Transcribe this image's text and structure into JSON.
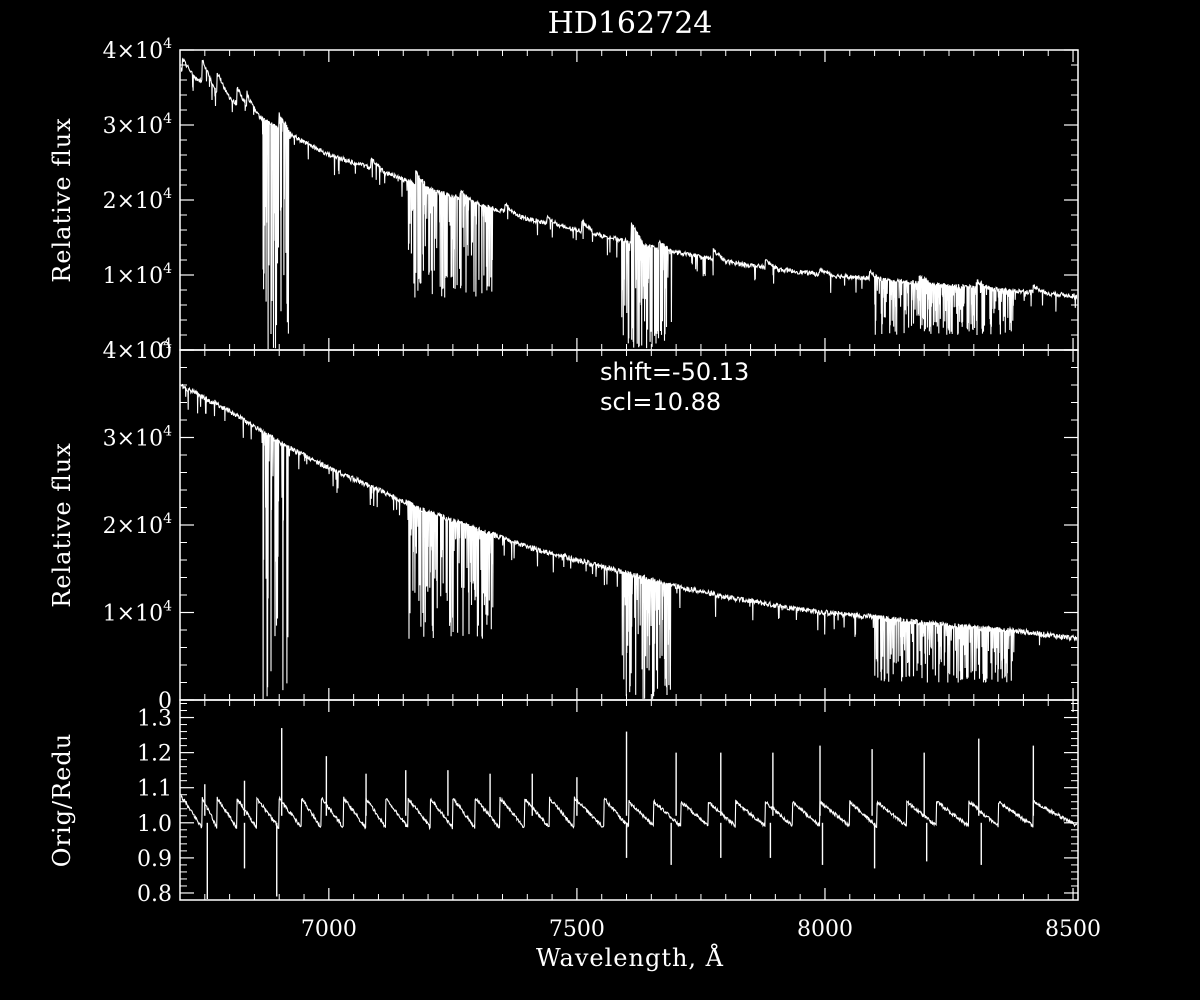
{
  "chart_data": {
    "type": "line",
    "title": "HD162724",
    "xlabel": "Wavelength, Å",
    "xlim": [
      6700,
      8510
    ],
    "x_ticks": [
      7000,
      7500,
      8000,
      8500
    ],
    "x_tick_labels": [
      "7000",
      "7500",
      "8000",
      "8500"
    ],
    "colors": {
      "background": "#000000",
      "foreground": "#ffffff"
    },
    "panels": [
      {
        "ylabel": "Relative flux",
        "ylim": [
          0,
          40000
        ],
        "y_ticks": [
          0,
          10000,
          20000,
          30000,
          40000
        ],
        "y_tick_labels": [
          {
            "base": "0",
            "exp": ""
          },
          {
            "base": "1×10",
            "exp": "4"
          },
          {
            "base": "2×10",
            "exp": "4"
          },
          {
            "base": "3×10",
            "exp": "4"
          },
          {
            "base": "4×10",
            "exp": "4"
          }
        ],
        "series": [
          {
            "continuum": [
              [
                6700,
                37500
              ],
              [
                6800,
                33500
              ],
              [
                6900,
                29500
              ],
              [
                7000,
                26000
              ],
              [
                7100,
                24000
              ],
              [
                7200,
                21500
              ],
              [
                7300,
                19500
              ],
              [
                7400,
                17500
              ],
              [
                7500,
                16000
              ],
              [
                7600,
                14500
              ],
              [
                7700,
                13000
              ],
              [
                7800,
                11800
              ],
              [
                7900,
                10800
              ],
              [
                8000,
                10000
              ],
              [
                8100,
                9500
              ],
              [
                8200,
                8800
              ],
              [
                8300,
                8300
              ],
              [
                8400,
                7800
              ],
              [
                8510,
                7200
              ]
            ],
            "steps": [
              [
                6705,
                1500
              ],
              [
                6745,
                3000
              ],
              [
                6775,
                2500
              ],
              [
                6815,
                2000
              ],
              [
                6835,
                1800
              ],
              [
                6900,
                2000
              ],
              [
                7085,
                1200
              ],
              [
                7175,
                1800
              ],
              [
                7265,
                1000
              ],
              [
                7355,
                1000
              ],
              [
                7440,
                800
              ],
              [
                7510,
                1500
              ],
              [
                7610,
                2500
              ],
              [
                7665,
                1000
              ],
              [
                7775,
                1200
              ],
              [
                7880,
                900
              ],
              [
                7990,
                700
              ],
              [
                8090,
                800
              ],
              [
                8190,
                1000
              ],
              [
                8305,
                1000
              ],
              [
                8420,
                900
              ]
            ],
            "absorption_bands": [
              {
                "x": [
                  6865,
                  6920
                ],
                "min": 0
              },
              {
                "x": [
                  7160,
                  7330
                ],
                "min": 7000
              },
              {
                "x": [
                  7590,
                  7690
                ],
                "min": 0
              },
              {
                "x": [
                  8100,
                  8380
                ],
                "min": 2000
              }
            ]
          }
        ]
      },
      {
        "ylabel": "Relative flux",
        "ylim": [
          0,
          40000
        ],
        "y_ticks": [
          0,
          10000,
          20000,
          30000,
          40000
        ],
        "y_tick_labels": [
          {
            "base": "0",
            "exp": ""
          },
          {
            "base": "1×10",
            "exp": "4"
          },
          {
            "base": "2×10",
            "exp": "4"
          },
          {
            "base": "3×10",
            "exp": "4"
          },
          {
            "base": "4×10",
            "exp": "4"
          }
        ],
        "annotations": [
          "shift=-50.13",
          "scl=10.88"
        ],
        "series": [
          {
            "continuum": [
              [
                6700,
                36000
              ],
              [
                6800,
                33000
              ],
              [
                6900,
                29500
              ],
              [
                7000,
                26500
              ],
              [
                7100,
                24000
              ],
              [
                7200,
                21500
              ],
              [
                7300,
                19500
              ],
              [
                7400,
                17500
              ],
              [
                7500,
                16000
              ],
              [
                7600,
                14500
              ],
              [
                7700,
                13000
              ],
              [
                7800,
                11800
              ],
              [
                7900,
                10800
              ],
              [
                8000,
                10000
              ],
              [
                8100,
                9500
              ],
              [
                8200,
                8800
              ],
              [
                8300,
                8300
              ],
              [
                8400,
                7800
              ],
              [
                8510,
                7000
              ]
            ],
            "absorption_bands": [
              {
                "x": [
                  6865,
                  6920
                ],
                "min": 0
              },
              {
                "x": [
                  7160,
                  7330
                ],
                "min": 7000
              },
              {
                "x": [
                  7590,
                  7690
                ],
                "min": 0
              },
              {
                "x": [
                  8100,
                  8380
                ],
                "min": 2000
              }
            ]
          }
        ]
      },
      {
        "ylabel": "Orig/Redu",
        "ylim": [
          0.78,
          1.35
        ],
        "y_ticks": [
          0.8,
          0.9,
          1.0,
          1.1,
          1.2,
          1.3
        ],
        "y_tick_labels": [
          {
            "base": "0.8",
            "exp": ""
          },
          {
            "base": "0.9",
            "exp": ""
          },
          {
            "base": "1.0",
            "exp": ""
          },
          {
            "base": "1.1",
            "exp": ""
          },
          {
            "base": "1.2",
            "exp": ""
          },
          {
            "base": "1.3",
            "exp": ""
          }
        ],
        "series": [
          {
            "order_edges": [
              6705,
              6745,
              6775,
              6815,
              6855,
              6900,
              6945,
              6985,
              7030,
              7075,
              7115,
              7160,
              7205,
              7250,
              7295,
              7345,
              7395,
              7445,
              7495,
              7555,
              7605,
              7655,
              7710,
              7765,
              7820,
              7880,
              7935,
              7990,
              8050,
              8105,
              8165,
              8225,
              8290,
              8350,
              8420,
              8510
            ],
            "spike_positions": [
              6750,
              6830,
              6905,
              6995,
              7075,
              7155,
              7240,
              7325,
              7410,
              7500,
              7600,
              7700,
              7790,
              7895,
              7990,
              8095,
              8200,
              8310,
              8420
            ],
            "spike_peaks": [
              1.11,
              1.12,
              1.27,
              1.19,
              1.14,
              1.15,
              1.15,
              1.14,
              1.14,
              1.13,
              1.26,
              1.2,
              1.2,
              1.2,
              1.22,
              1.21,
              1.2,
              1.24,
              1.22
            ],
            "dip_positions": [
              6755,
              6830,
              6895,
              7600,
              7690,
              7790,
              7890,
              7995,
              8100,
              8205,
              8315
            ],
            "dip_values": [
              0.78,
              0.87,
              0.79,
              0.9,
              0.88,
              0.9,
              0.9,
              0.88,
              0.87,
              0.89,
              0.88
            ]
          }
        ]
      }
    ]
  }
}
